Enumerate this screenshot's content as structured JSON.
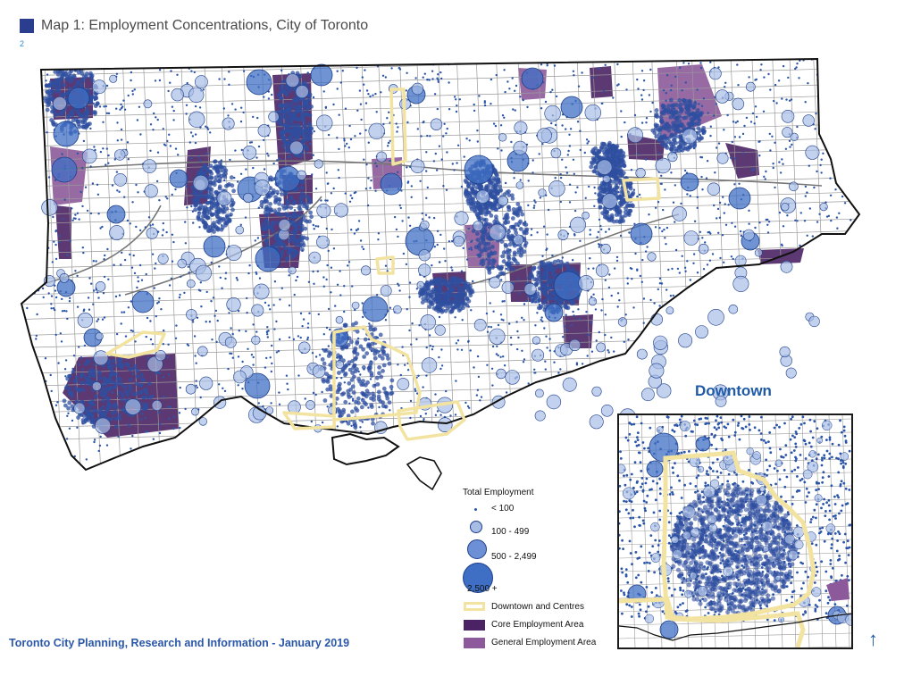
{
  "header": {
    "title": "Map 1: Employment Concentrations, City of Toronto",
    "page_number": "2"
  },
  "inset": {
    "title": "Downtown"
  },
  "legend": {
    "title": "Total Employment",
    "items": [
      {
        "label": "< 100"
      },
      {
        "label": "100 - 499"
      },
      {
        "label": "500 - 2,499"
      },
      {
        "label": "2,500 +"
      },
      {
        "label": "Downtown and Centres"
      },
      {
        "label": "Core Employment Area"
      },
      {
        "label": "General Employment Area"
      }
    ]
  },
  "footer": {
    "credit": "Toronto City Planning, Research and Information - January 2019"
  },
  "north_arrow": {
    "glyph": "↑"
  },
  "colors": {
    "bubble_fill": "#3f6fc4",
    "bubble_small_fill": "#a8bde6",
    "bubble_stroke": "#1e3f8a",
    "dot": "#2b55a8",
    "centre_outline": "#f3e3a1",
    "core_employment": "#4b2364",
    "general_employment": "#8c5a9a",
    "boundary": "#111111",
    "roads": "#9a9a9a",
    "title_swatch": "#2a3d8f"
  }
}
